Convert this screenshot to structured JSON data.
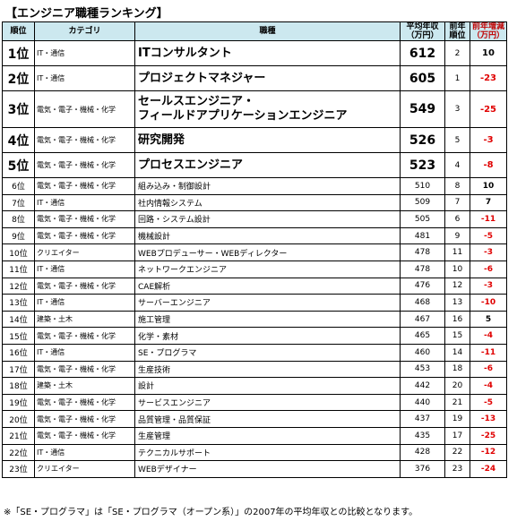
{
  "title": "【エンジニア職種ランキング】",
  "headers": {
    "rank": "順位",
    "category": "カテゴリ",
    "job": "職種",
    "income": "平均年収\n（万円）",
    "prev_rank": "前年\n順位",
    "change": "前年増減\n（万円）"
  },
  "rows": [
    {
      "rank": "1位",
      "category": "IT・通信",
      "job": "ITコンサルタント",
      "income": "612",
      "prev": "2",
      "change": "10"
    },
    {
      "rank": "2位",
      "category": "IT・通信",
      "job": "プロジェクトマネジャー",
      "income": "605",
      "prev": "1",
      "change": "-23"
    },
    {
      "rank": "3位",
      "category": "電気・電子・機械・化学",
      "job": "セールスエンジニア・\nフィールドアプリケーションエンジニア",
      "income": "549",
      "prev": "3",
      "change": "-25"
    },
    {
      "rank": "4位",
      "category": "電気・電子・機械・化学",
      "job": "研究開発",
      "income": "526",
      "prev": "5",
      "change": "-3"
    },
    {
      "rank": "5位",
      "category": "電気・電子・機械・化学",
      "job": "プロセスエンジニア",
      "income": "523",
      "prev": "4",
      "change": "-8"
    },
    {
      "rank": "6位",
      "category": "電気・電子・機械・化学",
      "job": "組み込み・制御設計",
      "income": "510",
      "prev": "8",
      "change": "10"
    },
    {
      "rank": "7位",
      "category": "IT・通信",
      "job": "社内情報システム",
      "income": "509",
      "prev": "7",
      "change": "7"
    },
    {
      "rank": "8位",
      "category": "電気・電子・機械・化学",
      "job": "回路・システム設計",
      "income": "505",
      "prev": "6",
      "change": "-11"
    },
    {
      "rank": "9位",
      "category": "電気・電子・機械・化学",
      "job": "機械設計",
      "income": "481",
      "prev": "9",
      "change": "-5"
    },
    {
      "rank": "10位",
      "category": "クリエイター",
      "job": "WEBプロデューサー・WEBディレクター",
      "income": "478",
      "prev": "11",
      "change": "-3"
    },
    {
      "rank": "11位",
      "category": "IT・通信",
      "job": "ネットワークエンジニア",
      "income": "478",
      "prev": "10",
      "change": "-6"
    },
    {
      "rank": "12位",
      "category": "電気・電子・機械・化学",
      "job": "CAE解析",
      "income": "476",
      "prev": "12",
      "change": "-3"
    },
    {
      "rank": "13位",
      "category": "IT・通信",
      "job": "サーバーエンジニア",
      "income": "468",
      "prev": "13",
      "change": "-10"
    },
    {
      "rank": "14位",
      "category": "建築・土木",
      "job": "施工管理",
      "income": "467",
      "prev": "16",
      "change": "5"
    },
    {
      "rank": "15位",
      "category": "電気・電子・機械・化学",
      "job": "化学・素材",
      "income": "465",
      "prev": "15",
      "change": "-4"
    },
    {
      "rank": "16位",
      "category": "IT・通信",
      "job": "SE・プログラマ",
      "income": "460",
      "prev": "14",
      "change": "-11"
    },
    {
      "rank": "17位",
      "category": "電気・電子・機械・化学",
      "job": "生産技術",
      "income": "453",
      "prev": "18",
      "change": "-6"
    },
    {
      "rank": "18位",
      "category": "建築・土木",
      "job": "設計",
      "income": "442",
      "prev": "20",
      "change": "-4"
    },
    {
      "rank": "19位",
      "category": "電気・電子・機械・化学",
      "job": "サービスエンジニア",
      "income": "440",
      "prev": "21",
      "change": "-5"
    },
    {
      "rank": "20位",
      "category": "電気・電子・機械・化学",
      "job": "品質管理・品質保証",
      "income": "437",
      "prev": "19",
      "change": "-13"
    },
    {
      "rank": "21位",
      "category": "電気・電子・機械・化学",
      "job": "生産管理",
      "income": "435",
      "prev": "17",
      "change": "-25"
    },
    {
      "rank": "22位",
      "category": "IT・通信",
      "job": "テクニカルサポート",
      "income": "428",
      "prev": "22",
      "change": "-12"
    },
    {
      "rank": "23位",
      "category": "クリエイター",
      "job": "WEBデザイナー",
      "income": "376",
      "prev": "23",
      "change": "-24"
    }
  ],
  "note": "※「SE・プログラマ」は「SE・プログラマ（オープン系）」の2007年の平均年収との比較となります。",
  "colors": {
    "header_bg": "#cce8ef",
    "negative": "#e00000"
  }
}
